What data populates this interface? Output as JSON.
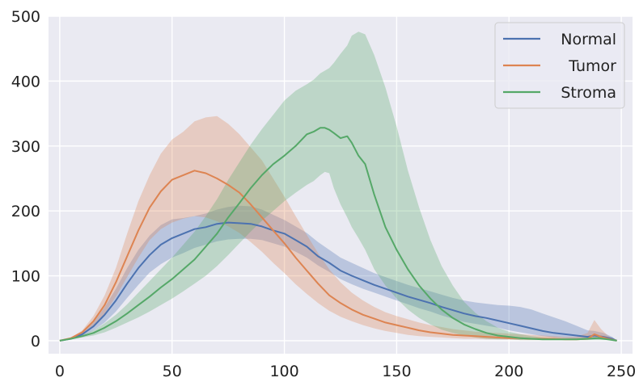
{
  "chart_data": {
    "type": "line",
    "title": "",
    "xlabel": "",
    "ylabel": "",
    "xlim": [
      -5,
      255
    ],
    "ylim": [
      -20,
      500
    ],
    "xticks": [
      0,
      50,
      100,
      150,
      200,
      250
    ],
    "yticks": [
      0,
      100,
      200,
      300,
      400,
      500
    ],
    "xtick_labels": [
      "0",
      "50",
      "100",
      "150",
      "200",
      "250"
    ],
    "ytick_labels": [
      "0",
      "100",
      "200",
      "300",
      "400",
      "500"
    ],
    "grid": true,
    "legend_position": "top-right",
    "background": "#eaeaf2",
    "series": [
      {
        "name": "Normal",
        "color": "#4c72b0",
        "x": [
          0,
          5,
          10,
          15,
          20,
          25,
          30,
          35,
          40,
          45,
          50,
          55,
          60,
          65,
          70,
          75,
          80,
          85,
          90,
          95,
          100,
          105,
          110,
          115,
          120,
          125,
          130,
          135,
          140,
          145,
          150,
          155,
          160,
          165,
          170,
          175,
          180,
          185,
          190,
          195,
          200,
          205,
          210,
          215,
          220,
          225,
          230,
          235,
          238,
          242,
          246,
          248
        ],
        "mean": [
          0,
          3,
          10,
          22,
          40,
          62,
          88,
          112,
          132,
          148,
          158,
          165,
          172,
          175,
          180,
          182,
          181,
          180,
          176,
          170,
          165,
          155,
          145,
          130,
          120,
          108,
          100,
          93,
          86,
          80,
          74,
          68,
          63,
          58,
          52,
          47,
          42,
          38,
          35,
          31,
          27,
          23,
          19,
          15,
          12,
          10,
          8,
          6,
          8,
          6,
          3,
          0
        ],
        "lower": [
          0,
          2,
          7,
          16,
          28,
          45,
          66,
          86,
          105,
          118,
          128,
          135,
          143,
          148,
          153,
          156,
          157,
          157,
          155,
          150,
          145,
          137,
          128,
          116,
          106,
          95,
          87,
          80,
          74,
          68,
          62,
          56,
          50,
          45,
          39,
          34,
          29,
          26,
          23,
          20,
          16,
          13,
          10,
          7,
          5,
          4,
          3,
          2,
          4,
          3,
          1,
          0
        ],
        "upper": [
          0,
          4,
          13,
          28,
          52,
          80,
          112,
          140,
          162,
          178,
          187,
          189,
          192,
          196,
          202,
          206,
          208,
          207,
          202,
          194,
          186,
          176,
          166,
          152,
          140,
          128,
          120,
          112,
          104,
          98,
          92,
          86,
          81,
          76,
          71,
          66,
          62,
          59,
          57,
          55,
          54,
          52,
          48,
          42,
          36,
          30,
          23,
          16,
          15,
          12,
          6,
          0
        ]
      },
      {
        "name": "Tumor",
        "color": "#dd8452",
        "x": [
          0,
          5,
          10,
          15,
          20,
          25,
          30,
          35,
          40,
          45,
          50,
          55,
          60,
          65,
          70,
          75,
          80,
          85,
          90,
          95,
          100,
          105,
          110,
          115,
          120,
          125,
          130,
          135,
          140,
          145,
          150,
          155,
          160,
          165,
          170,
          175,
          180,
          185,
          190,
          195,
          200,
          205,
          210,
          215,
          220,
          225,
          230,
          235,
          238,
          241,
          244,
          248
        ],
        "mean": [
          0,
          4,
          13,
          30,
          55,
          90,
          130,
          170,
          205,
          230,
          248,
          255,
          262,
          258,
          250,
          240,
          228,
          210,
          190,
          170,
          150,
          128,
          108,
          88,
          70,
          58,
          48,
          40,
          34,
          28,
          24,
          20,
          16,
          13,
          11,
          9,
          8,
          7,
          6,
          5,
          4,
          4,
          3,
          3,
          3,
          2,
          2,
          3,
          10,
          6,
          3,
          0
        ],
        "lower": [
          0,
          3,
          10,
          22,
          42,
          68,
          98,
          128,
          155,
          172,
          182,
          188,
          192,
          190,
          184,
          176,
          166,
          152,
          137,
          120,
          104,
          87,
          72,
          58,
          46,
          37,
          30,
          24,
          19,
          15,
          12,
          9,
          7,
          6,
          5,
          4,
          3,
          3,
          2,
          2,
          2,
          1,
          1,
          1,
          1,
          1,
          1,
          1,
          3,
          2,
          1,
          0
        ],
        "upper": [
          0,
          5,
          16,
          38,
          70,
          112,
          165,
          215,
          255,
          288,
          310,
          322,
          338,
          344,
          346,
          334,
          318,
          298,
          278,
          250,
          222,
          192,
          163,
          135,
          110,
          90,
          74,
          62,
          52,
          44,
          38,
          33,
          28,
          24,
          21,
          18,
          16,
          14,
          13,
          12,
          11,
          10,
          9,
          8,
          7,
          6,
          6,
          12,
          32,
          18,
          8,
          0
        ]
      },
      {
        "name": "Stroma",
        "color": "#55a868",
        "x": [
          0,
          5,
          10,
          15,
          20,
          25,
          30,
          35,
          40,
          45,
          50,
          55,
          60,
          65,
          70,
          75,
          80,
          85,
          90,
          95,
          100,
          105,
          110,
          113,
          116,
          118,
          120,
          122,
          125,
          128,
          130,
          133,
          136,
          140,
          145,
          150,
          155,
          160,
          165,
          170,
          175,
          180,
          185,
          190,
          195,
          200,
          205,
          210,
          215,
          220,
          225,
          230,
          235,
          240,
          244,
          248
        ],
        "mean": [
          0,
          3,
          7,
          12,
          20,
          30,
          42,
          55,
          68,
          82,
          95,
          110,
          125,
          145,
          165,
          190,
          212,
          235,
          255,
          272,
          285,
          300,
          318,
          322,
          328,
          328,
          325,
          320,
          312,
          315,
          305,
          285,
          272,
          225,
          175,
          140,
          110,
          85,
          65,
          48,
          35,
          25,
          18,
          12,
          8,
          6,
          4,
          3,
          2,
          2,
          2,
          2,
          3,
          4,
          2,
          0
        ],
        "lower": [
          0,
          2,
          5,
          8,
          13,
          20,
          28,
          36,
          45,
          55,
          65,
          76,
          88,
          100,
          115,
          132,
          150,
          168,
          185,
          200,
          215,
          228,
          240,
          246,
          255,
          260,
          258,
          235,
          210,
          190,
          175,
          158,
          140,
          110,
          85,
          65,
          48,
          35,
          25,
          17,
          12,
          8,
          5,
          3,
          2,
          2,
          1,
          1,
          1,
          1,
          1,
          1,
          1,
          1,
          1,
          0
        ],
        "upper": [
          0,
          4,
          9,
          16,
          27,
          40,
          56,
          74,
          92,
          110,
          128,
          148,
          168,
          192,
          218,
          248,
          275,
          302,
          326,
          348,
          370,
          385,
          395,
          402,
          412,
          416,
          420,
          428,
          442,
          455,
          470,
          476,
          472,
          440,
          390,
          330,
          262,
          205,
          155,
          115,
          85,
          60,
          43,
          30,
          20,
          14,
          10,
          7,
          5,
          4,
          4,
          4,
          5,
          6,
          3,
          0
        ]
      }
    ]
  }
}
